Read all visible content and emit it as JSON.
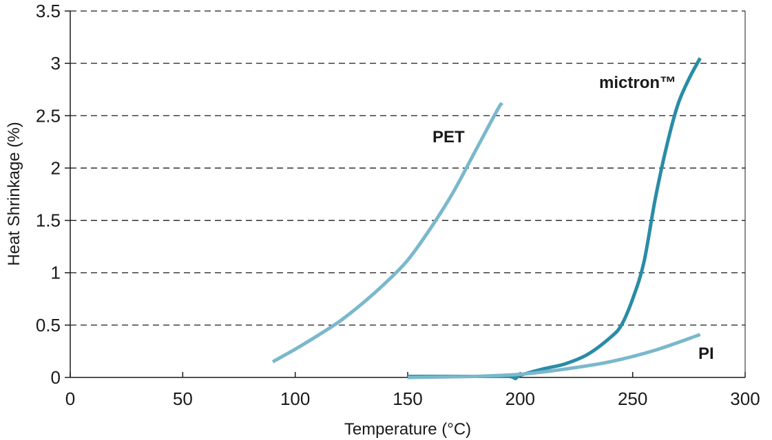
{
  "chart_data": {
    "type": "line",
    "title": "",
    "xlabel": "Temperature (°C)",
    "ylabel": "Heat Shrinkage (%)",
    "xlim": [
      0,
      300
    ],
    "ylim": [
      0,
      3.5
    ],
    "xticks": [
      0,
      50,
      100,
      150,
      200,
      250,
      300
    ],
    "yticks": [
      0,
      0.5,
      1,
      1.5,
      2,
      2.5,
      3,
      3.5
    ],
    "xtick_labels": [
      "0",
      "50",
      "100",
      "150",
      "200",
      "250",
      "300"
    ],
    "ytick_labels": [
      "0",
      "0.5",
      "1",
      "1.5",
      "2",
      "2.5",
      "3",
      "3.5"
    ],
    "grid": "horizontal-dashed",
    "legend": "none (direct labels)",
    "series": [
      {
        "name": "PET",
        "color": "#7ab8cc",
        "x": [
          90,
          100,
          110,
          120,
          130,
          140,
          150,
          160,
          170,
          180,
          190,
          192
        ],
        "y": [
          0.15,
          0.27,
          0.4,
          0.54,
          0.71,
          0.9,
          1.12,
          1.42,
          1.76,
          2.16,
          2.56,
          2.62
        ]
      },
      {
        "name": "mictron™",
        "color": "#2a8ca6",
        "x": [
          150,
          170,
          190,
          195,
          197,
          198,
          200,
          210,
          220,
          230,
          240,
          245,
          250,
          255,
          260,
          265,
          270,
          275,
          280
        ],
        "y": [
          0.01,
          0.01,
          0.01,
          0.01,
          0.0,
          -0.01,
          0.02,
          0.08,
          0.13,
          0.22,
          0.38,
          0.5,
          0.75,
          1.1,
          1.7,
          2.2,
          2.6,
          2.85,
          3.05
        ]
      },
      {
        "name": "PI",
        "color": "#7ab8cc",
        "x": [
          150,
          180,
          200,
          220,
          240,
          260,
          280
        ],
        "y": [
          0.0,
          0.01,
          0.03,
          0.08,
          0.15,
          0.26,
          0.41
        ]
      }
    ]
  }
}
